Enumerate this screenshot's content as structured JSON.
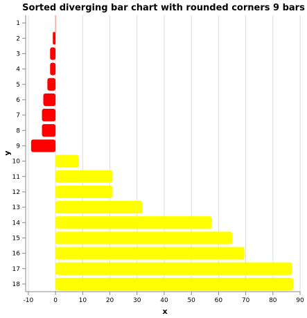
{
  "chart_data": {
    "type": "bar",
    "orientation": "horizontal",
    "title": "Sorted diverging bar chart with rounded corners 9 bars",
    "xlabel": "x",
    "ylabel": "y",
    "xlim": [
      -11,
      90
    ],
    "x_ticks": [
      "-10",
      "0",
      "10",
      "20",
      "30",
      "40",
      "50",
      "60",
      "70",
      "80",
      "90"
    ],
    "grid": true,
    "legend": "none",
    "colors": {
      "negative": "#ff0000",
      "positive": "#ffff00"
    },
    "categories": [
      "1",
      "2",
      "3",
      "4",
      "5",
      "6",
      "7",
      "8",
      "9",
      "10",
      "11",
      "12",
      "13",
      "14",
      "15",
      "16",
      "17",
      "18"
    ],
    "values": [
      0,
      -1,
      -2,
      -2,
      -3,
      -4.5,
      -5,
      -5,
      -9,
      8.5,
      21,
      21,
      32,
      57.5,
      65,
      69.5,
      87,
      87.5
    ]
  }
}
